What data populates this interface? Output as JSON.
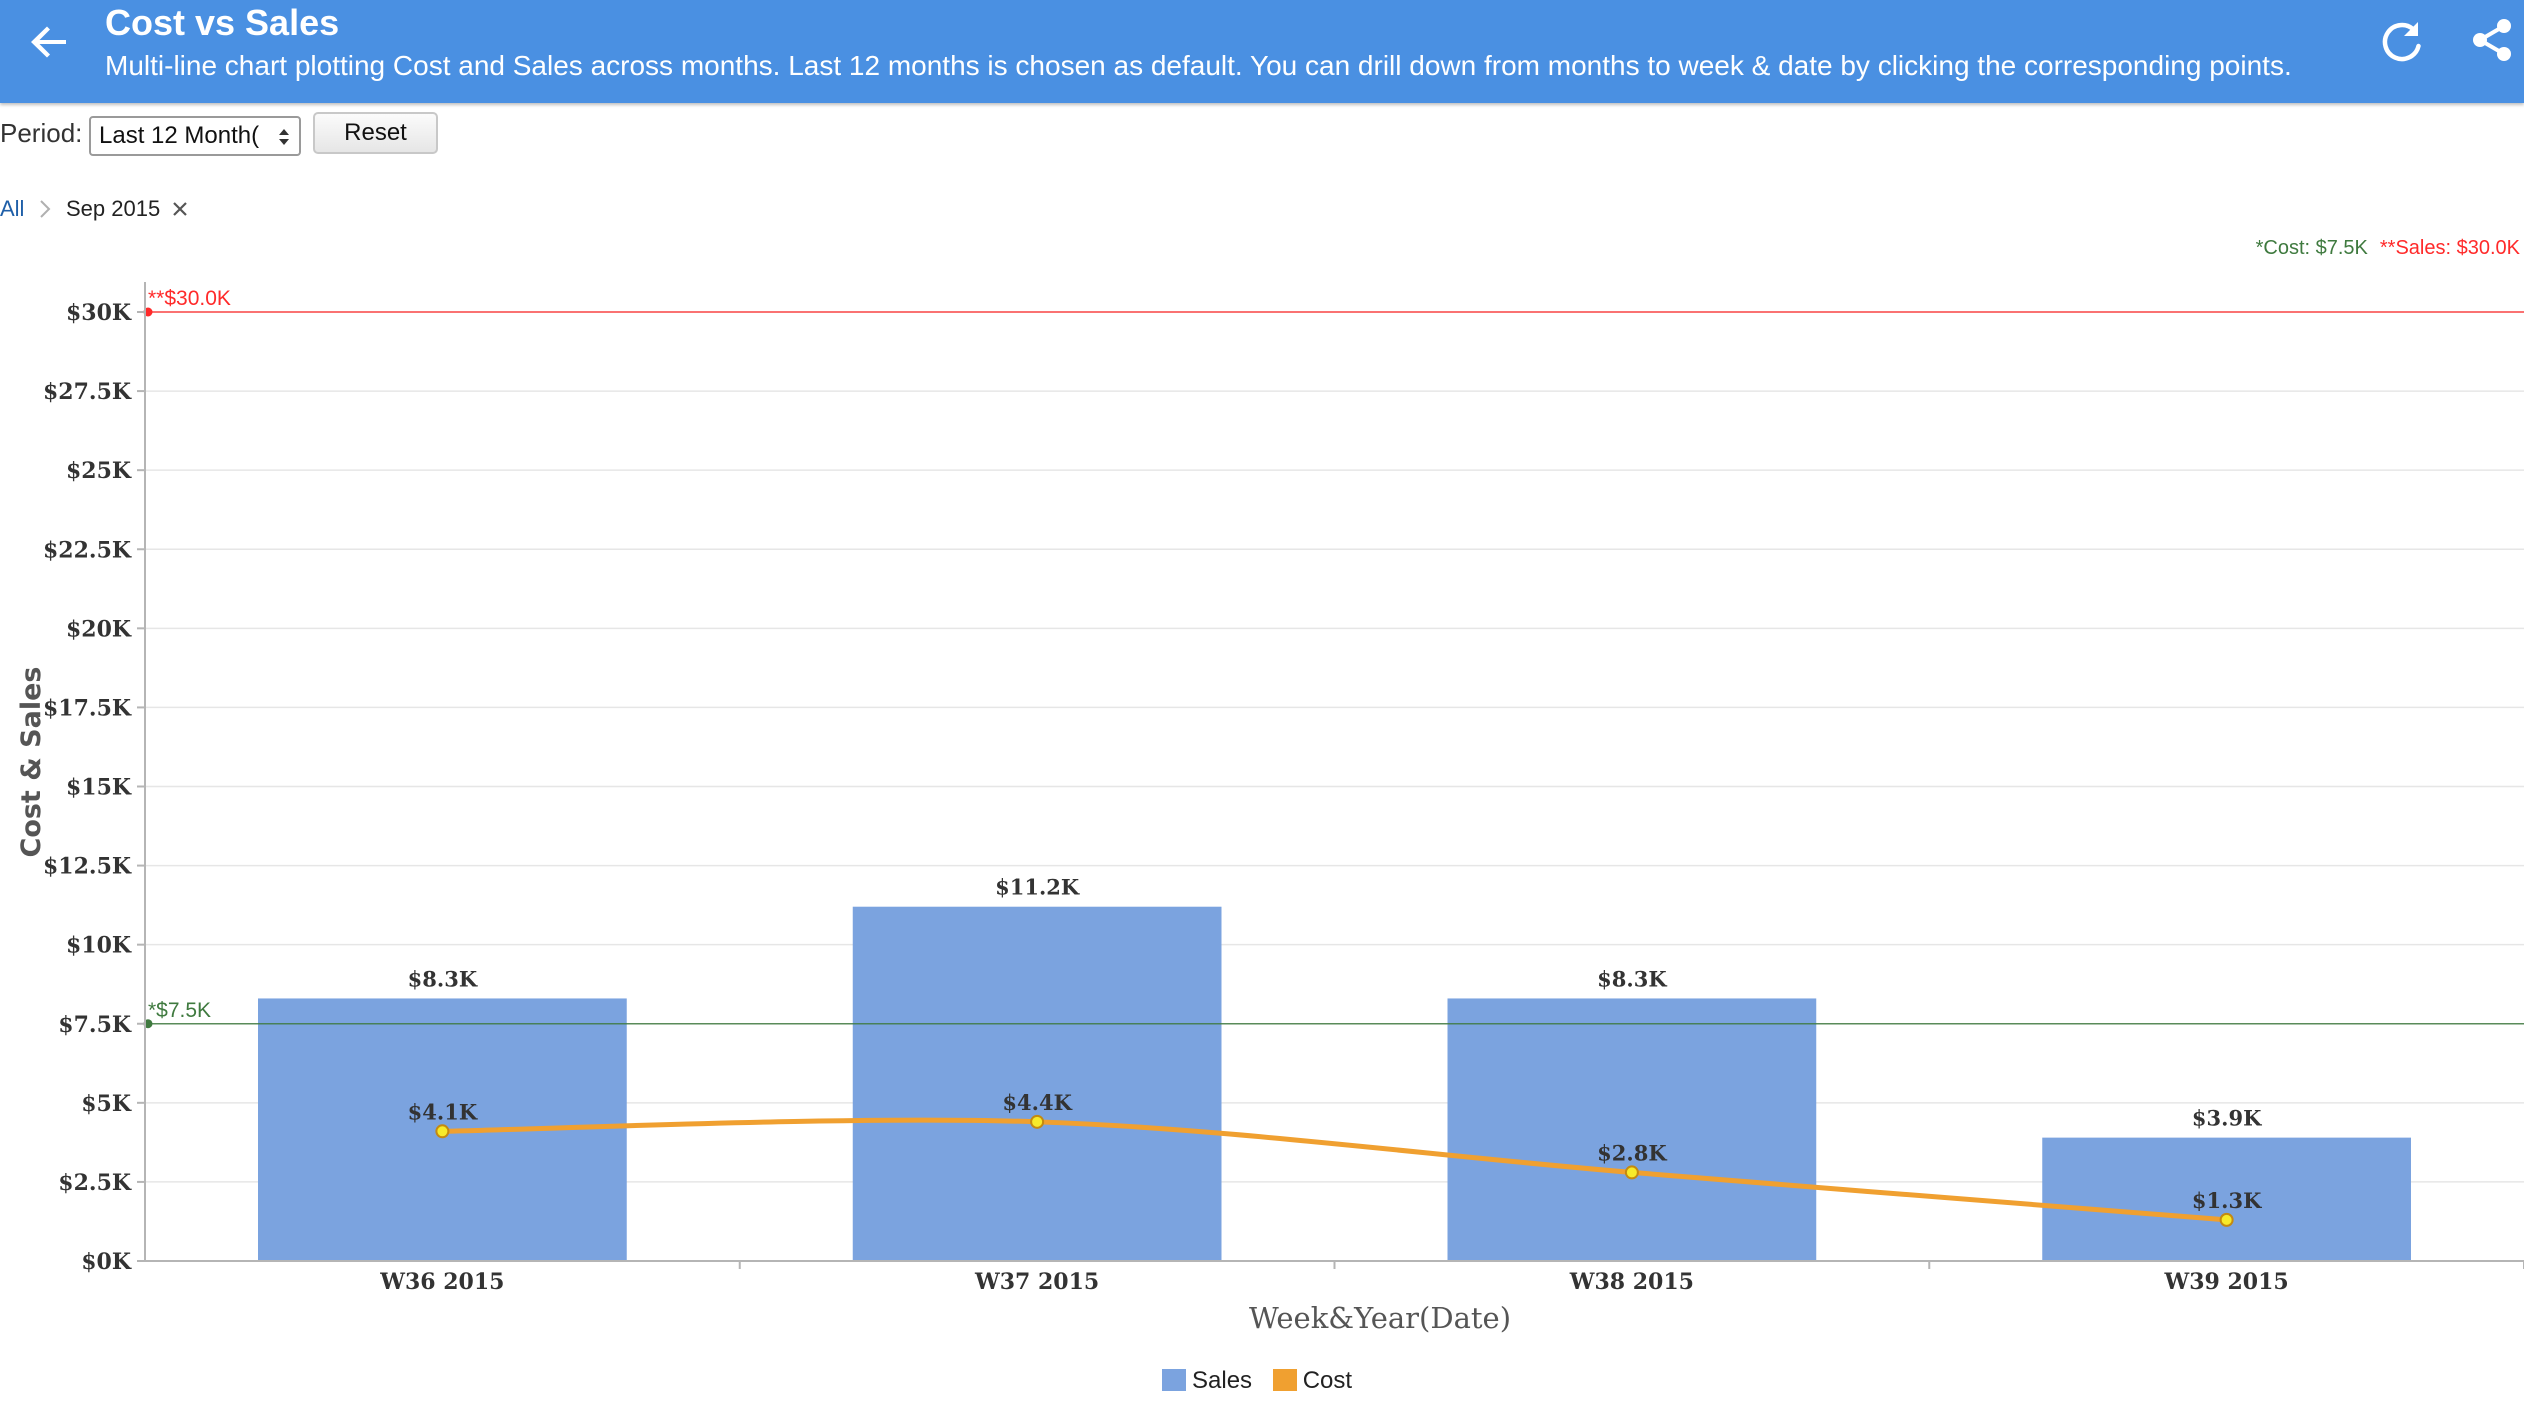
{
  "header": {
    "title": "Cost vs Sales",
    "subtitle": "Multi-line chart plotting Cost and Sales across months. Last 12 months is chosen as default. You can drill down from months to week & date by clicking the corresponding points."
  },
  "icons": {
    "back": "arrow-left-icon",
    "refresh": "refresh-icon",
    "share": "share-icon",
    "breadcrumb_separator": "chevron-right-icon",
    "breadcrumb_close": "close-icon",
    "select_arrows": "updown-arrows-icon"
  },
  "controls": {
    "period_label": "Period:",
    "period_value": "Last 12 Month(",
    "reset_label": "Reset"
  },
  "breadcrumb": {
    "root": "All",
    "current": "Sep 2015"
  },
  "reference_lines": {
    "cost": {
      "legend": "*Cost: $7.5K",
      "label": "*$7.5K",
      "value": 7500,
      "color": "#3f7a3f"
    },
    "sales": {
      "legend": "**Sales: $30.0K",
      "label": "**$30.0K",
      "value": 30000,
      "color": "#ff2a2a"
    }
  },
  "colors": {
    "header": "#4a90e2",
    "sales_bar": "#7ba3df",
    "cost_line": "#f0a030",
    "point_fill": "#f7ea2a"
  },
  "chart_data": {
    "type": "bar",
    "categories": [
      "W36 2015",
      "W37 2015",
      "W38 2015",
      "W39 2015"
    ],
    "series": [
      {
        "name": "Sales",
        "type": "bar",
        "values": [
          8300,
          11200,
          8300,
          3900
        ],
        "labels": [
          "$8.3K",
          "$11.2K",
          "$8.3K",
          "$3.9K"
        ]
      },
      {
        "name": "Cost",
        "type": "line",
        "values": [
          4100,
          4400,
          2800,
          1300
        ],
        "labels": [
          "$4.1K",
          "$4.4K",
          "$2.8K",
          "$1.3K"
        ]
      }
    ],
    "xlabel": "Week&Year(Date)",
    "ylabel": "Cost & Sales",
    "ylim": [
      0,
      30000
    ],
    "yticks": [
      0,
      2500,
      5000,
      7500,
      10000,
      12500,
      15000,
      17500,
      20000,
      22500,
      25000,
      27500,
      30000
    ],
    "ytick_labels": [
      "$0K",
      "$2.5K",
      "$5K",
      "$7.5K",
      "$10K",
      "$12.5K",
      "$15K",
      "$17.5K",
      "$20K",
      "$22.5K",
      "$25K",
      "$27.5K",
      "$30K"
    ],
    "grid": true,
    "legend_position": "bottom-center"
  }
}
